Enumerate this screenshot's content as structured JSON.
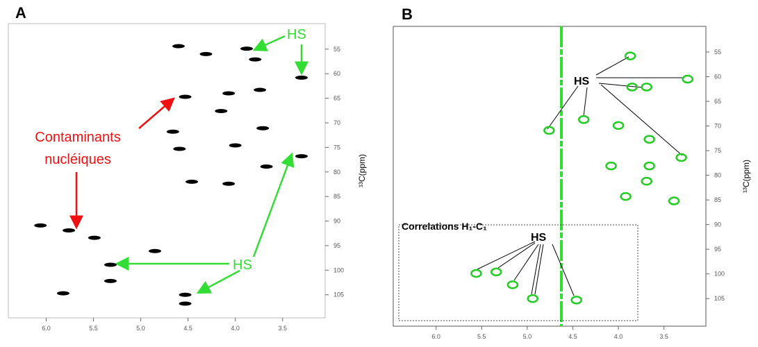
{
  "chart_data": [
    {
      "type": "scatter",
      "panel": "A",
      "color": "#000000",
      "x": [
        4.6,
        4.31,
        3.88,
        3.79,
        3.3,
        4.53,
        4.07,
        3.74,
        4.15,
        3.71,
        4.66,
        4.59,
        4.0,
        3.67,
        4.46,
        4.07,
        5.76,
        5.49,
        5.32,
        4.85,
        5.32,
        4.53,
        4.53,
        5.82,
        3.3,
        6.06
      ],
      "values": [
        54.4,
        56,
        54.9,
        57.1,
        60.8,
        64.7,
        64.0,
        63.3,
        67.6,
        71.1,
        71.8,
        75.3,
        74.6,
        78.9,
        82,
        82.4,
        91.9,
        93.4,
        98.9,
        96.1,
        102.2,
        105,
        106.8,
        104.7,
        76.8,
        90.9
      ],
      "xlim": [
        6.4,
        3.05
      ],
      "ylim": [
        109.7,
        49.8
      ],
      "xticks": [
        {
          "value": 6,
          "label": "6.0"
        },
        5.5,
        {
          "value": 5,
          "label": "5.0"
        },
        4.5,
        {
          "value": 4,
          "label": "4.0"
        },
        3.5
      ],
      "yticks": [
        55,
        60,
        65,
        70,
        75,
        80,
        85,
        90,
        95,
        100,
        105
      ],
      "y_label": "¹³C(ppm)",
      "annotations": [
        "HS",
        "Contaminants",
        "nucléiques",
        "HS"
      ]
    },
    {
      "type": "scatter",
      "panel": "B",
      "color": "#22cc22",
      "x": [
        3.87,
        3.24,
        3.85,
        3.69,
        4.76,
        4.38,
        4.0,
        3.66,
        3.31,
        4.08,
        3.69,
        3.66,
        3.92,
        5.56,
        5.34,
        5.16,
        4.94,
        4.46,
        3.39
      ],
      "values": [
        55.8,
        60.5,
        62.1,
        62.1,
        70.9,
        68.7,
        69.9,
        72.7,
        76.4,
        78.1,
        81.2,
        78.1,
        84.3,
        99.9,
        99.6,
        102.2,
        105,
        105.3,
        85.2
      ],
      "xlim": [
        6.47,
        3.04
      ],
      "ylim": [
        110.6,
        49.8
      ],
      "xticks": [
        {
          "value": 6,
          "label": "6.0"
        },
        5.5,
        {
          "value": 5,
          "label": "5.0"
        },
        4.5,
        {
          "value": 4,
          "label": "4.0"
        },
        3.5
      ],
      "yticks": [
        55,
        60,
        65,
        70,
        75,
        80,
        85,
        90,
        95,
        100,
        105
      ],
      "y_label": "¹³C(ppm)",
      "annotations": [
        "HS",
        "Correlations H₁-C₁",
        "HS"
      ]
    }
  ]
}
